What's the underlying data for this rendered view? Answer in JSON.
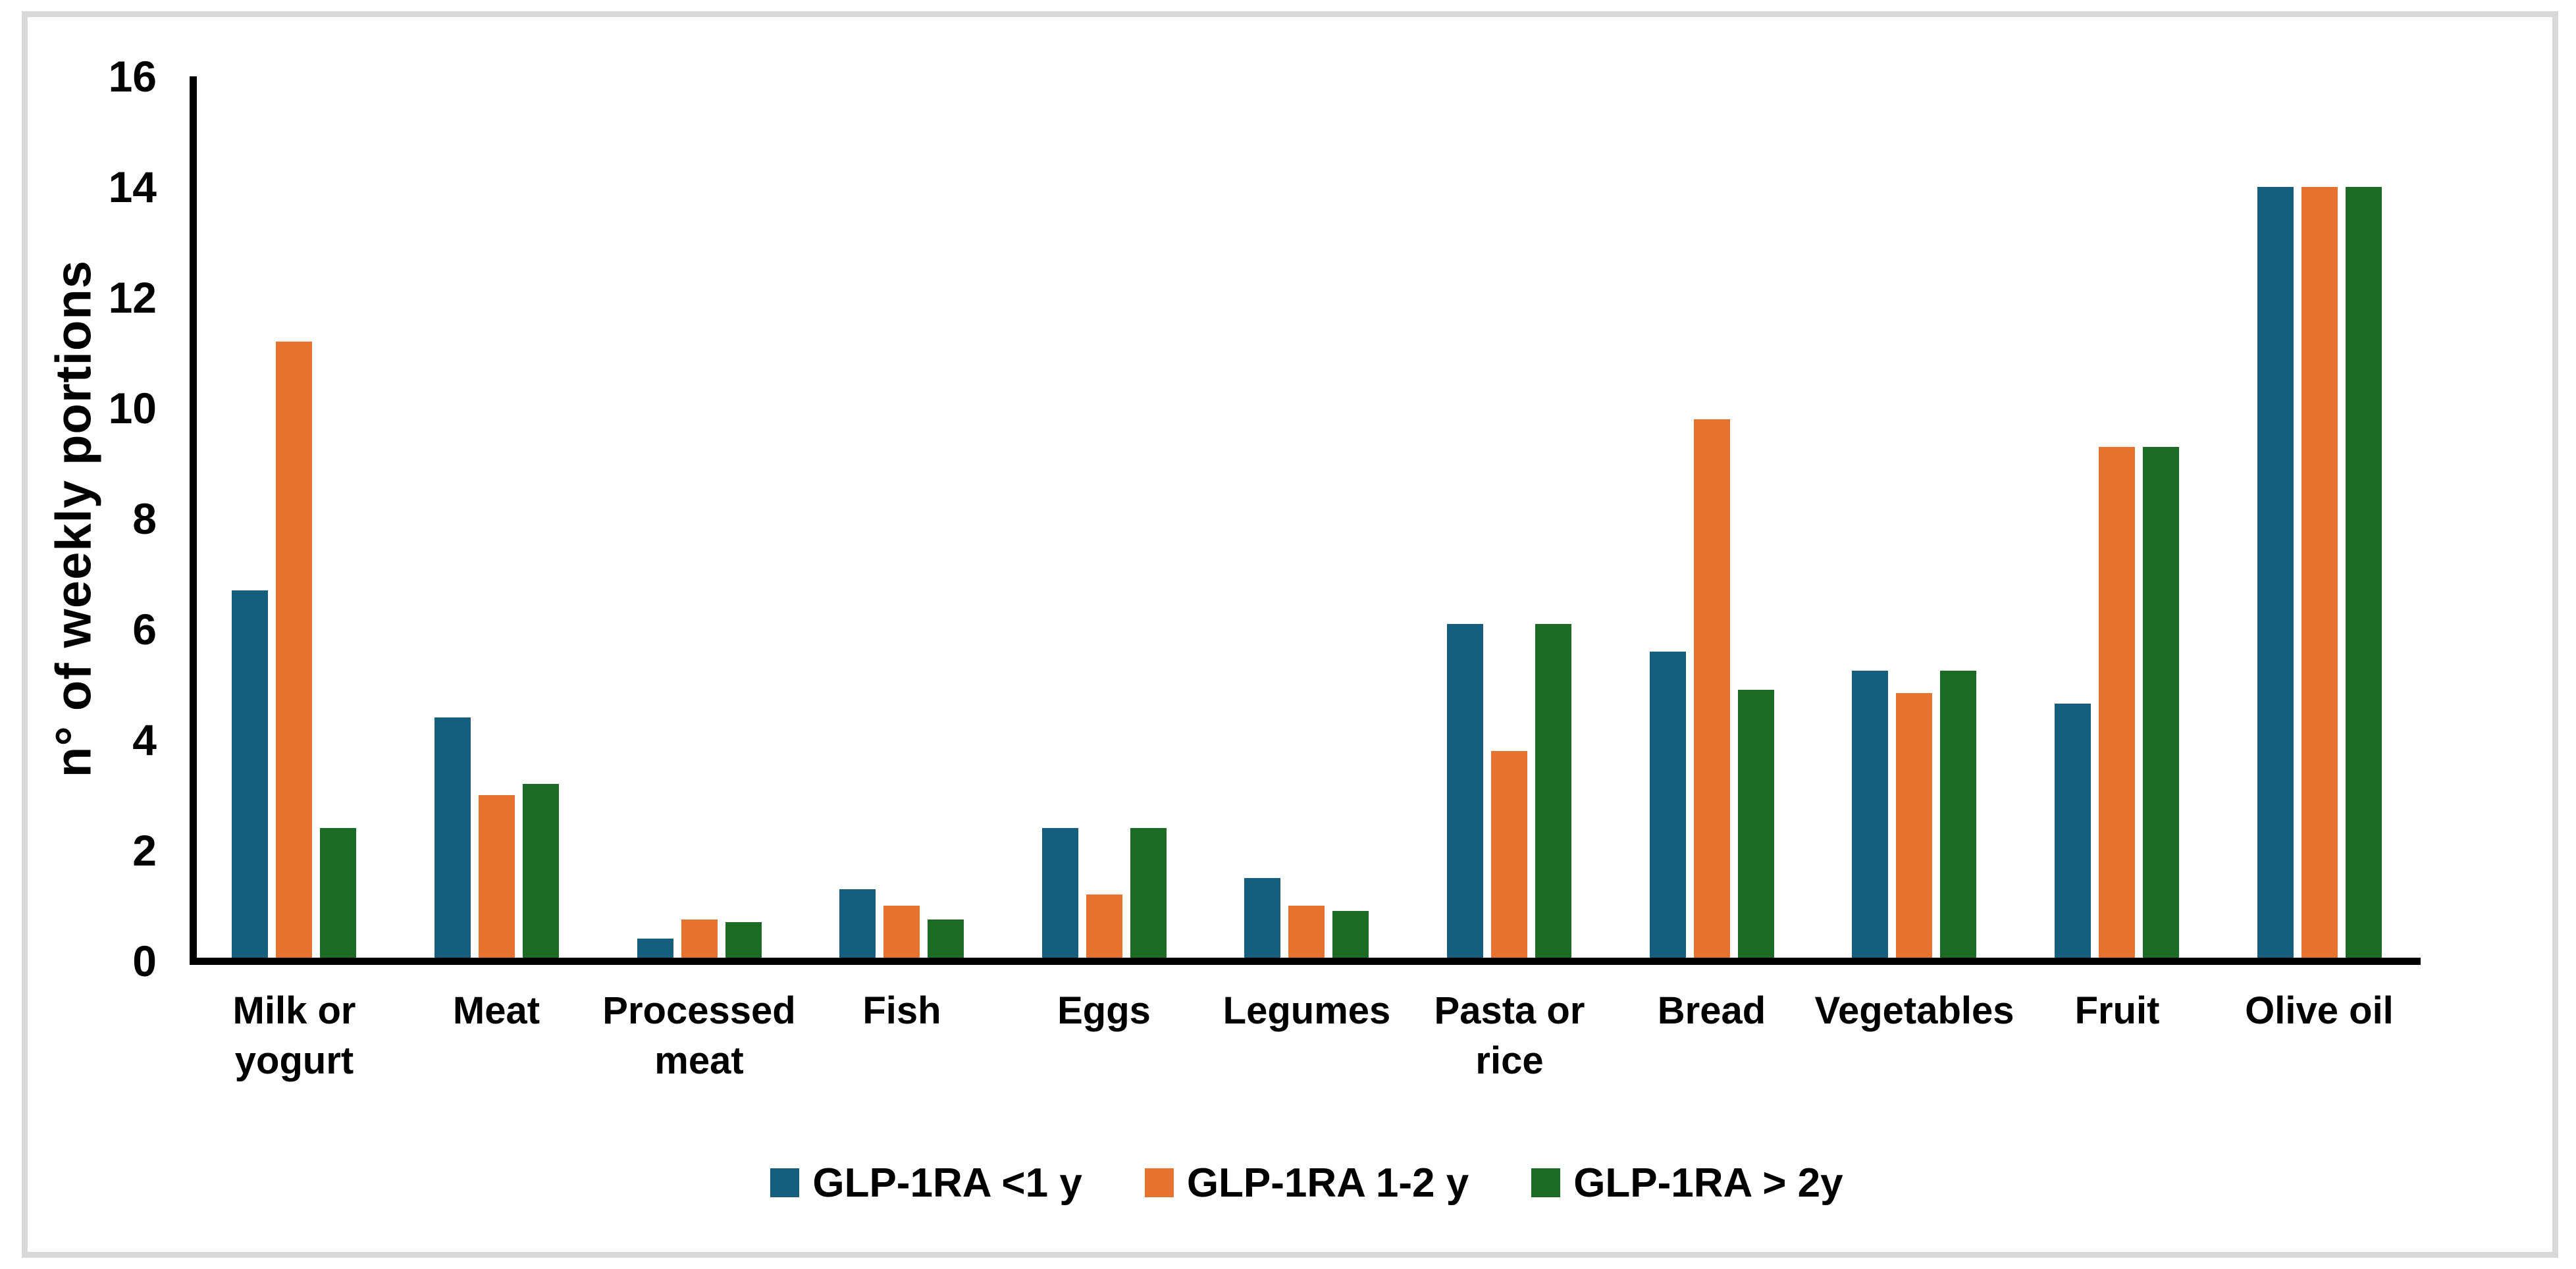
{
  "figure": {
    "background_color": "#ffffff",
    "border_color": "#d9d9d9"
  },
  "chart_data": {
    "type": "bar",
    "title": "",
    "xlabel": "",
    "ylabel": "n° of weekly portions",
    "ylim": [
      0,
      16
    ],
    "yticks": [
      0,
      2,
      4,
      6,
      8,
      10,
      12,
      14,
      16
    ],
    "grid": false,
    "legend_position": "bottom-center",
    "categories": [
      "Milk or yogurt",
      "Meat",
      "Processed meat",
      "Fish",
      "Eggs",
      "Legumes",
      "Pasta or rice",
      "Bread",
      "Vegetables",
      "Fruit",
      "Olive oil"
    ],
    "category_label_lines": [
      [
        "Milk or",
        "yogurt"
      ],
      [
        "Meat"
      ],
      [
        "Processed",
        "meat"
      ],
      [
        "Fish"
      ],
      [
        "Eggs"
      ],
      [
        "Legumes"
      ],
      [
        "Pasta or",
        "rice"
      ],
      [
        "Bread"
      ],
      [
        "Vegetables"
      ],
      [
        "Fruit"
      ],
      [
        "Olive oil"
      ]
    ],
    "series": [
      {
        "name": "GLP-1RA <1 y",
        "color": "#165e7e",
        "values": [
          6.7,
          4.4,
          0.4,
          1.3,
          2.4,
          1.5,
          6.1,
          5.6,
          5.25,
          4.65,
          14
        ]
      },
      {
        "name": "GLP-1RA 1-2 y",
        "color": "#e6722f",
        "values": [
          11.2,
          3.0,
          0.75,
          1.0,
          1.2,
          1.0,
          3.8,
          9.8,
          4.85,
          9.3,
          14
        ]
      },
      {
        "name": "GLP-1RA > 2y",
        "color": "#1b6b24",
        "values": [
          2.4,
          3.2,
          0.7,
          0.75,
          2.4,
          0.9,
          6.1,
          4.9,
          5.25,
          9.3,
          14
        ]
      }
    ]
  }
}
